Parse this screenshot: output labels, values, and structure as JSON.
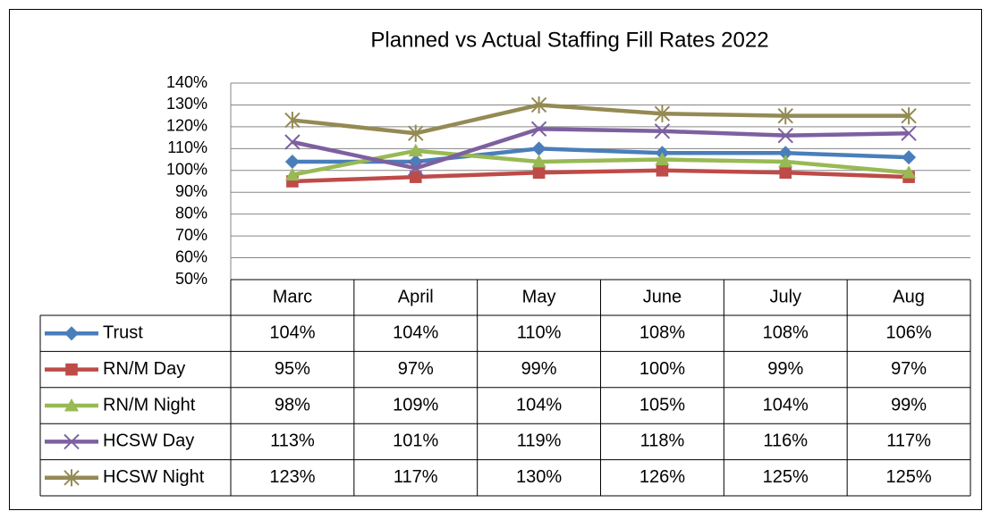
{
  "chart_data": {
    "type": "line",
    "title": "Planned vs Actual Staffing Fill Rates 2022",
    "categories": [
      "Marc",
      "April",
      "May",
      "June",
      "July",
      "Aug"
    ],
    "series": [
      {
        "name": "Trust",
        "color": "#4a7ebb",
        "marker": "diamond",
        "values": [
          104,
          104,
          110,
          108,
          108,
          106
        ],
        "value_labels": [
          "104%",
          "104%",
          "110%",
          "108%",
          "108%",
          "106%"
        ]
      },
      {
        "name": "RN/M Day",
        "color": "#be4b48",
        "marker": "square",
        "values": [
          95,
          97,
          99,
          100,
          99,
          97
        ],
        "value_labels": [
          "95%",
          "97%",
          "99%",
          "100%",
          "99%",
          "97%"
        ]
      },
      {
        "name": "RN/M Night",
        "color": "#98b954",
        "marker": "triangle",
        "values": [
          98,
          109,
          104,
          105,
          104,
          99
        ],
        "value_labels": [
          "98%",
          "109%",
          "104%",
          "105%",
          "104%",
          "99%"
        ]
      },
      {
        "name": "HCSW Day",
        "color": "#7d60a0",
        "marker": "x",
        "values": [
          113,
          101,
          119,
          118,
          116,
          117
        ],
        "value_labels": [
          "113%",
          "101%",
          "119%",
          "118%",
          "116%",
          "117%"
        ]
      },
      {
        "name": "HCSW Night",
        "color": "#948a54",
        "marker": "star",
        "values": [
          123,
          117,
          130,
          126,
          125,
          125
        ],
        "value_labels": [
          "123%",
          "117%",
          "130%",
          "126%",
          "125%",
          "125%"
        ]
      }
    ],
    "ylim": [
      50,
      140
    ],
    "yticks": [
      {
        "value": 50,
        "label": "50%"
      },
      {
        "value": 60,
        "label": "60%"
      },
      {
        "value": 70,
        "label": "70%"
      },
      {
        "value": 80,
        "label": "80%"
      },
      {
        "value": 90,
        "label": "90%"
      },
      {
        "value": 100,
        "label": "100%"
      },
      {
        "value": 110,
        "label": "110%"
      },
      {
        "value": 120,
        "label": "120%"
      },
      {
        "value": 130,
        "label": "130%"
      },
      {
        "value": 140,
        "label": "140%"
      }
    ],
    "grid": true
  }
}
